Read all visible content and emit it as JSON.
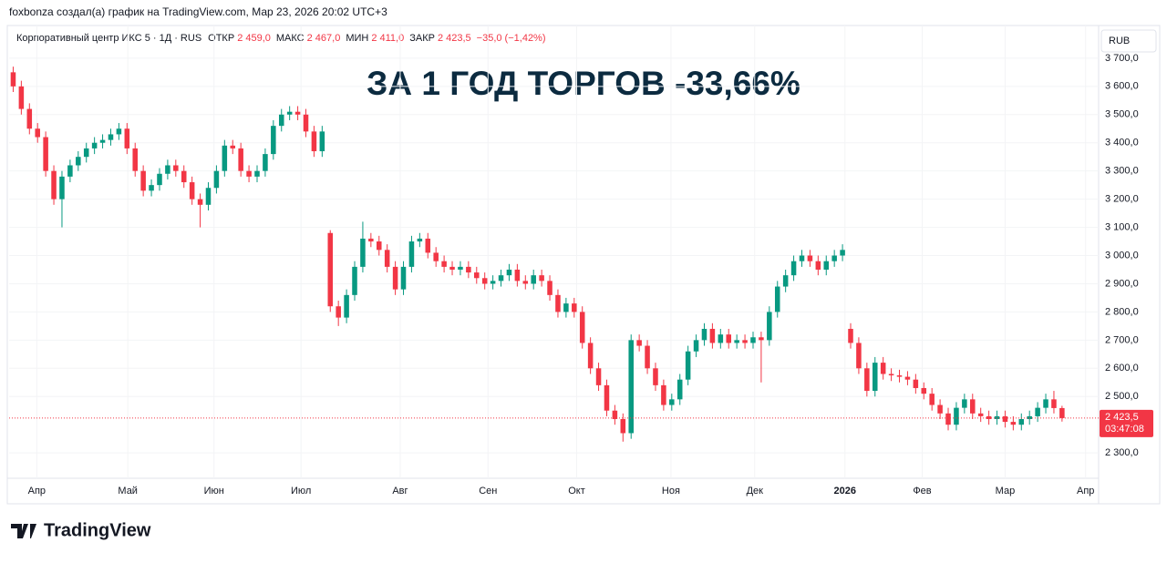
{
  "header": "foxbonza создал(а) график на TradingView.com, Мар 23, 2026 20:02 UTC+3",
  "footer": "TradingView",
  "chart_data": {
    "type": "candlestick",
    "symbol": "Корпоративный центр ИКС 5 · 1Д · RUS",
    "ohlc_legend": [
      {
        "label": "ОТКР",
        "value": "2 459,0"
      },
      {
        "label": "МАКС",
        "value": "2 467,0"
      },
      {
        "label": "МИН",
        "value": "2 411,0"
      },
      {
        "label": "ЗАКР",
        "value": "2 423,5"
      }
    ],
    "change": "−35,0 (−1,42%)",
    "annotation": "ЗА 1 ГОД ТОРГОВ -33,66%",
    "currency": "RUB",
    "last_price": {
      "value": 2423.5,
      "label": "2 423,5"
    },
    "countdown": "03:47:08",
    "up_color": "#089981",
    "down_color": "#f23645",
    "xlim": [
      0,
      134
    ],
    "xticks": [
      {
        "value": 3.4,
        "label": "Апр"
      },
      {
        "value": 14.6,
        "label": "Май"
      },
      {
        "value": 25.2,
        "label": "Июн"
      },
      {
        "value": 35.9,
        "label": "Июл"
      },
      {
        "value": 48.1,
        "label": "Авг"
      },
      {
        "value": 58.9,
        "label": "Сен"
      },
      {
        "value": 69.8,
        "label": "Окт"
      },
      {
        "value": 81.4,
        "label": "Ноя"
      },
      {
        "value": 91.7,
        "label": "Дек"
      },
      {
        "value": 102.8,
        "label": "2026"
      },
      {
        "value": 112.3,
        "label": "Фев"
      },
      {
        "value": 122.5,
        "label": "Мар"
      },
      {
        "value": 132.4,
        "label": "Апр"
      }
    ],
    "ylim": [
      2210,
      3803
    ],
    "yticks": [
      {
        "value": 3700,
        "label": "3 700,0"
      },
      {
        "value": 3600,
        "label": "3 600,0"
      },
      {
        "value": 3500,
        "label": "3 500,0"
      },
      {
        "value": 3400,
        "label": "3 400,0"
      },
      {
        "value": 3300,
        "label": "3 300,0"
      },
      {
        "value": 3200,
        "label": "3 200,0"
      },
      {
        "value": 3100,
        "label": "3 100,0"
      },
      {
        "value": 3000,
        "label": "3 000,0"
      },
      {
        "value": 2900,
        "label": "2 900,0"
      },
      {
        "value": 2800,
        "label": "2 800,0"
      },
      {
        "value": 2700,
        "label": "2 700,0"
      },
      {
        "value": 2600,
        "label": "2 600,0"
      },
      {
        "value": 2500,
        "label": "2 500,0"
      },
      {
        "value": 2300,
        "label": "2 300,0"
      }
    ],
    "open": [
      3650,
      3600,
      3520,
      3450,
      3420,
      3300,
      3200,
      3280,
      3320,
      3350,
      3380,
      3400,
      3410,
      3430,
      3450,
      3380,
      3300,
      3230,
      3250,
      3290,
      3320,
      3300,
      3260,
      3200,
      3180,
      3240,
      3300,
      3390,
      3380,
      3300,
      3280,
      3300,
      3360,
      3460,
      3500,
      3510,
      3500,
      3440,
      3370,
      3080,
      2820,
      2780,
      2860,
      2960,
      3060,
      3050,
      3020,
      2960,
      2880,
      2960,
      3050,
      3060,
      3010,
      2980,
      2960,
      2950,
      2960,
      2940,
      2920,
      2900,
      2910,
      2930,
      2950,
      2910,
      2900,
      2930,
      2910,
      2860,
      2800,
      2830,
      2800,
      2690,
      2600,
      2540,
      2450,
      2420,
      2370,
      2700,
      2680,
      2600,
      2540,
      2470,
      2490,
      2560,
      2660,
      2700,
      2740,
      2690,
      2720,
      2690,
      2700,
      2690,
      2710,
      2700,
      2800,
      2890,
      2930,
      2980,
      3000,
      2980,
      2950,
      2980,
      3000,
      2740,
      2690,
      2600,
      2520,
      2620,
      2580,
      2575,
      2570,
      2560,
      2530,
      2510,
      2470,
      2440,
      2400,
      2460,
      2490,
      2440,
      2430,
      2420,
      2430,
      2410,
      2400,
      2420,
      2430,
      2460,
      2490,
      2459
    ],
    "high": [
      3670,
      3620,
      3540,
      3470,
      3440,
      3320,
      3300,
      3340,
      3370,
      3400,
      3420,
      3430,
      3450,
      3470,
      3470,
      3400,
      3320,
      3270,
      3310,
      3340,
      3340,
      3320,
      3280,
      3220,
      3260,
      3320,
      3410,
      3410,
      3400,
      3320,
      3320,
      3380,
      3480,
      3520,
      3530,
      3530,
      3520,
      3460,
      3460,
      3090,
      2840,
      2880,
      2980,
      3120,
      3080,
      3070,
      3040,
      2980,
      2980,
      3070,
      3080,
      3080,
      3030,
      3000,
      2980,
      2980,
      2980,
      2960,
      2940,
      2930,
      2950,
      2970,
      2970,
      2930,
      2950,
      2950,
      2930,
      2880,
      2850,
      2850,
      2820,
      2710,
      2620,
      2560,
      2470,
      2440,
      2720,
      2720,
      2700,
      2620,
      2560,
      2510,
      2580,
      2680,
      2720,
      2760,
      2760,
      2740,
      2740,
      2720,
      2720,
      2730,
      2730,
      2820,
      2910,
      2950,
      3000,
      3020,
      3020,
      3000,
      3000,
      3020,
      3040,
      2760,
      2710,
      2620,
      2640,
      2640,
      2600,
      2595,
      2590,
      2580,
      2550,
      2530,
      2490,
      2460,
      2480,
      2510,
      2510,
      2460,
      2450,
      2450,
      2450,
      2430,
      2440,
      2450,
      2480,
      2510,
      2520,
      2467
    ],
    "low": [
      3580,
      3500,
      3430,
      3400,
      3280,
      3180,
      3100,
      3260,
      3300,
      3330,
      3360,
      3380,
      3390,
      3410,
      3360,
      3280,
      3210,
      3210,
      3230,
      3270,
      3280,
      3240,
      3180,
      3100,
      3160,
      3220,
      3280,
      3360,
      3280,
      3260,
      3260,
      3280,
      3340,
      3440,
      3480,
      3480,
      3420,
      3350,
      3350,
      2800,
      2750,
      2760,
      2840,
      2940,
      3030,
      3000,
      2940,
      2860,
      2860,
      2940,
      3030,
      2990,
      2960,
      2940,
      2930,
      2930,
      2920,
      2900,
      2880,
      2880,
      2890,
      2910,
      2890,
      2880,
      2880,
      2890,
      2840,
      2780,
      2780,
      2780,
      2670,
      2580,
      2520,
      2430,
      2400,
      2340,
      2350,
      2660,
      2580,
      2520,
      2450,
      2450,
      2470,
      2540,
      2640,
      2680,
      2670,
      2670,
      2670,
      2670,
      2670,
      2670,
      2550,
      2680,
      2780,
      2870,
      2910,
      2960,
      2960,
      2930,
      2930,
      2960,
      2980,
      2670,
      2580,
      2500,
      2500,
      2560,
      2555,
      2550,
      2540,
      2510,
      2490,
      2450,
      2420,
      2380,
      2380,
      2440,
      2420,
      2410,
      2400,
      2400,
      2390,
      2380,
      2380,
      2400,
      2410,
      2440,
      2440,
      2411
    ],
    "close": [
      3600,
      3520,
      3450,
      3420,
      3300,
      3200,
      3280,
      3320,
      3350,
      3380,
      3400,
      3410,
      3430,
      3450,
      3380,
      3300,
      3230,
      3250,
      3290,
      3320,
      3300,
      3260,
      3200,
      3180,
      3240,
      3300,
      3390,
      3380,
      3300,
      3280,
      3300,
      3360,
      3460,
      3500,
      3510,
      3500,
      3440,
      3370,
      3440,
      2820,
      2780,
      2860,
      2960,
      3060,
      3050,
      3020,
      2960,
      2880,
      2960,
      3050,
      3060,
      3010,
      2980,
      2960,
      2950,
      2960,
      2940,
      2920,
      2900,
      2910,
      2930,
      2950,
      2910,
      2900,
      2930,
      2910,
      2860,
      2800,
      2830,
      2800,
      2690,
      2600,
      2540,
      2450,
      2420,
      2370,
      2700,
      2680,
      2600,
      2540,
      2470,
      2490,
      2560,
      2660,
      2700,
      2740,
      2690,
      2720,
      2690,
      2700,
      2690,
      2710,
      2700,
      2800,
      2890,
      2930,
      2980,
      3000,
      2980,
      2950,
      2980,
      3000,
      3020,
      2690,
      2600,
      2520,
      2620,
      2580,
      2575,
      2570,
      2560,
      2530,
      2510,
      2470,
      2440,
      2400,
      2460,
      2490,
      2440,
      2430,
      2420,
      2430,
      2410,
      2400,
      2420,
      2430,
      2460,
      2490,
      2459,
      2423.5
    ]
  }
}
